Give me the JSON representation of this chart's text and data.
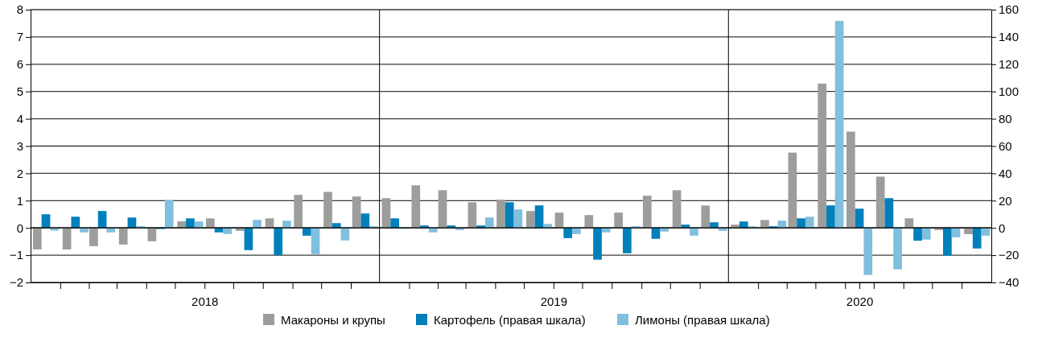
{
  "chart_data": {
    "type": "bar",
    "x": [
      "2018-01",
      "2018-02",
      "2018-03",
      "2018-04",
      "2018-05",
      "2018-06",
      "2018-07",
      "2018-08",
      "2018-09",
      "2018-10",
      "2018-11",
      "2018-12",
      "2019-01",
      "2019-02",
      "2019-03",
      "2019-04",
      "2019-05",
      "2019-06",
      "2019-07",
      "2019-08",
      "2019-09",
      "2019-10",
      "2019-11",
      "2019-12",
      "2020-01",
      "2020-02",
      "2020-03",
      "2020-04",
      "2020-05",
      "2020-06",
      "2020-07",
      "2020-08",
      "2020-09"
    ],
    "series": [
      {
        "name": "Макароны и крупы",
        "color": "#9d9d9c",
        "values": [
          -0.79,
          -0.79,
          -0.67,
          -0.61,
          -0.49,
          0.24,
          0.35,
          -0.11,
          0.35,
          1.21,
          1.32,
          1.15,
          1.09,
          1.56,
          1.38,
          0.94,
          1.03,
          0.62,
          0.56,
          0.47,
          0.56,
          1.18,
          1.38,
          0.82,
          0.12,
          0.29,
          2.76,
          5.29,
          3.53,
          1.88,
          0.35,
          -0.08,
          -0.23
        ]
      },
      {
        "name": "Картофель (правая шкала)",
        "color": "#0080bb",
        "axis": "y2",
        "values": [
          10,
          8.2,
          12.4,
          7.6,
          -0.8,
          7,
          -3.3,
          -16.3,
          -20,
          -5.7,
          3.5,
          10.6,
          7,
          1.8,
          1.8,
          1.8,
          18.8,
          16.5,
          -7.5,
          -23.3,
          -18.6,
          -8,
          2.4,
          4.1,
          4.7,
          1.2,
          7,
          16.5,
          14.1,
          21.8,
          -9.4,
          -20.4,
          -15.1
        ]
      },
      {
        "name": "Лимоны (правая шкала)",
        "color": "#80bfdd",
        "axis": "y2",
        "values": [
          -2,
          -3.3,
          -3.3,
          1.2,
          20.4,
          4.7,
          -4.5,
          5.9,
          5.3,
          -19.2,
          -9.2,
          1.2,
          -0.8,
          -3.3,
          -1.6,
          7.6,
          13.5,
          2.9,
          -4.5,
          -3.3,
          1.2,
          -2.7,
          -5.7,
          -2.2,
          1.2,
          5.3,
          8.2,
          151.8,
          -34.5,
          -30.4,
          -8.6,
          -6.9,
          -5.7
        ]
      }
    ],
    "xlim": [
      "2017-12-16",
      "2020-09-16"
    ],
    "xticks": [
      {
        "value": "2018-01-16",
        "label": null
      },
      {
        "value": "2018-02-15",
        "label": null
      },
      {
        "value": "2018-03-16",
        "label": null
      },
      {
        "value": "2018-04-16",
        "label": null
      },
      {
        "value": "2018-05-16",
        "label": null
      },
      {
        "value": "2018-06-16",
        "label": "2018"
      },
      {
        "value": "2018-07-16",
        "label": null
      },
      {
        "value": "2018-08-16",
        "label": null
      },
      {
        "value": "2018-09-16",
        "label": null
      },
      {
        "value": "2018-10-16",
        "label": null
      },
      {
        "value": "2018-11-16",
        "label": null
      },
      {
        "value": "2019-01-16",
        "label": null
      },
      {
        "value": "2019-02-15",
        "label": null
      },
      {
        "value": "2019-03-16",
        "label": null
      },
      {
        "value": "2019-04-16",
        "label": null
      },
      {
        "value": "2019-05-16",
        "label": null
      },
      {
        "value": "2019-06-16",
        "label": "2019"
      },
      {
        "value": "2019-07-16",
        "label": null
      },
      {
        "value": "2019-08-16",
        "label": null
      },
      {
        "value": "2019-09-16",
        "label": null
      },
      {
        "value": "2019-10-16",
        "label": null
      },
      {
        "value": "2019-11-16",
        "label": null
      },
      {
        "value": "2020-01-16",
        "label": null
      },
      {
        "value": "2020-02-15",
        "label": null
      },
      {
        "value": "2020-03-16",
        "label": null
      },
      {
        "value": "2020-04-16",
        "label": null
      },
      {
        "value": "2020-05-01",
        "label": "2020"
      },
      {
        "value": "2020-05-16",
        "label": null
      },
      {
        "value": "2020-06-16",
        "label": null
      },
      {
        "value": "2020-07-16",
        "label": null
      },
      {
        "value": "2020-08-16",
        "label": null
      }
    ],
    "ref_lines": [
      {
        "axis": "x",
        "value": "2018-12-16",
        "color": "#000000"
      },
      {
        "axis": "x",
        "value": "2019-12-16",
        "color": "#000000"
      }
    ],
    "ylim": [
      -2,
      8
    ],
    "yticks": [
      {
        "value": -2,
        "label": "−2"
      },
      {
        "value": -1,
        "label": "−1"
      },
      0,
      1,
      2,
      3,
      4,
      5,
      6,
      7,
      8
    ],
    "y2lim": [
      -40,
      160
    ],
    "y2ticks": [
      {
        "value": -40,
        "label": "−40"
      },
      {
        "value": -20,
        "label": "−20"
      },
      0,
      20,
      40,
      60,
      80,
      100,
      120,
      140,
      160
    ],
    "grid": "y",
    "legend": "bottom"
  }
}
